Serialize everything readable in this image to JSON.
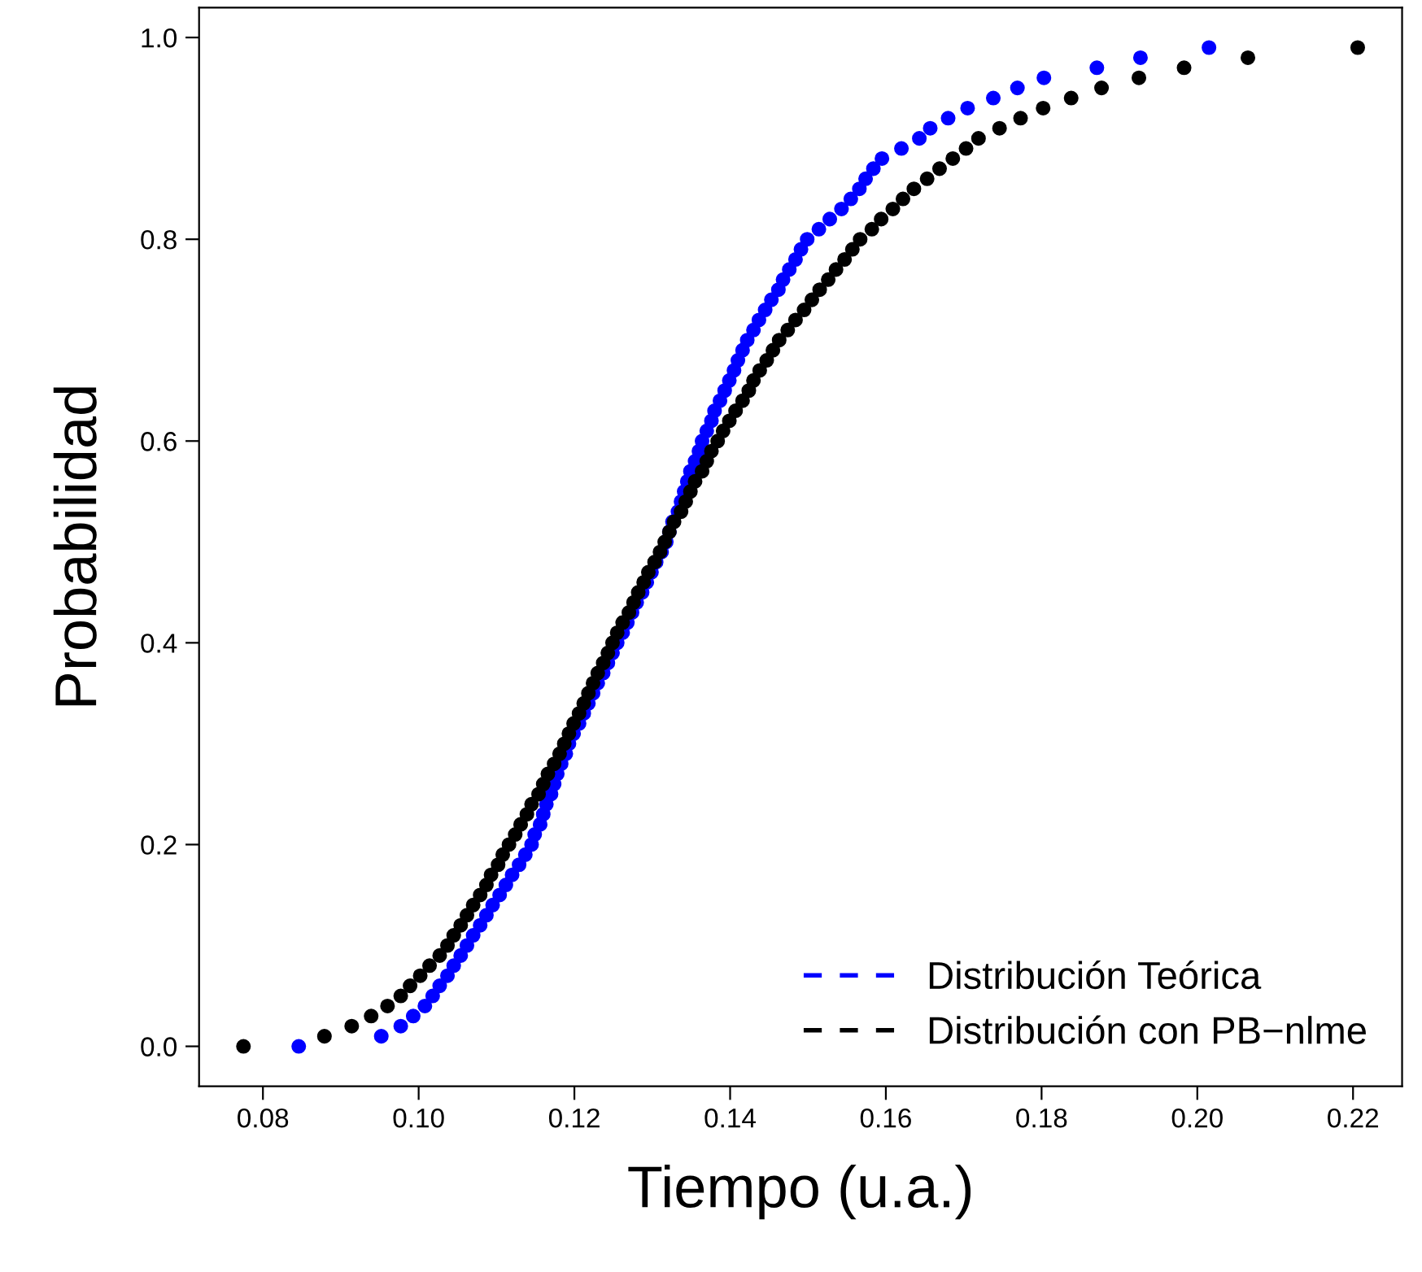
{
  "chart_data": {
    "type": "scatter",
    "xlabel": "Tiempo (u.a.)",
    "ylabel": "Probabilidad",
    "xlim": [
      0.0718,
      0.2263
    ],
    "ylim": [
      -0.0396,
      1.0296
    ],
    "xticks": [
      {
        "value": 0.08,
        "label": "0.08"
      },
      {
        "value": 0.1,
        "label": "0.10"
      },
      {
        "value": 0.12,
        "label": "0.12"
      },
      {
        "value": 0.14,
        "label": "0.14"
      },
      {
        "value": 0.16,
        "label": "0.16"
      },
      {
        "value": 0.18,
        "label": "0.18"
      },
      {
        "value": 0.2,
        "label": "0.20"
      },
      {
        "value": 0.22,
        "label": "0.22"
      }
    ],
    "yticks": [
      {
        "value": 0,
        "label": "0.0"
      },
      {
        "value": 0.2,
        "label": "0.2"
      },
      {
        "value": 0.4,
        "label": "0.4"
      },
      {
        "value": 0.6,
        "label": "0.6"
      },
      {
        "value": 0.8,
        "label": "0.8"
      },
      {
        "value": 1,
        "label": "1.0"
      }
    ],
    "grid": false,
    "legend": "bottom right",
    "marker": "circle",
    "series": [
      {
        "name": "Distribución Teórica",
        "color": "#0000ff",
        "line_style": "dashed",
        "x": [
          0.0846,
          0.0952,
          0.0977,
          0.0993,
          0.1008,
          0.1018,
          0.1027,
          0.1037,
          0.1045,
          0.1054,
          0.1062,
          0.107,
          0.1079,
          0.1087,
          0.1095,
          0.1104,
          0.1112,
          0.112,
          0.1129,
          0.1137,
          0.1145,
          0.1149,
          0.1156,
          0.116,
          0.1164,
          0.117,
          0.1174,
          0.1178,
          0.1183,
          0.1189,
          0.1193,
          0.1199,
          0.1206,
          0.1212,
          0.1218,
          0.1224,
          0.123,
          0.1237,
          0.1243,
          0.1249,
          0.1255,
          0.1262,
          0.1268,
          0.1274,
          0.128,
          0.1287,
          0.1293,
          0.1299,
          0.1305,
          0.1312,
          0.1318,
          0.1322,
          0.1326,
          0.1333,
          0.1337,
          0.1341,
          0.1345,
          0.1349,
          0.1355,
          0.136,
          0.1364,
          0.137,
          0.1376,
          0.138,
          0.1387,
          0.1393,
          0.1399,
          0.1405,
          0.141,
          0.1416,
          0.1422,
          0.143,
          0.1437,
          0.1445,
          0.1453,
          0.1462,
          0.1468,
          0.1476,
          0.1484,
          0.1491,
          0.1499,
          0.1514,
          0.1528,
          0.1543,
          0.1555,
          0.1566,
          0.1574,
          0.1584,
          0.1595,
          0.162,
          0.1643,
          0.1657,
          0.168,
          0.1705,
          0.1738,
          0.1769,
          0.1803,
          0.1871,
          0.1927,
          0.2015
        ],
        "values": [
          0,
          0.01,
          0.02,
          0.03,
          0.04,
          0.05,
          0.06,
          0.07,
          0.08,
          0.09,
          0.1,
          0.11,
          0.12,
          0.13,
          0.14,
          0.15,
          0.16,
          0.17,
          0.18,
          0.19,
          0.2,
          0.21,
          0.22,
          0.23,
          0.24,
          0.25,
          0.26,
          0.27,
          0.28,
          0.29,
          0.3,
          0.31,
          0.32,
          0.33,
          0.34,
          0.35,
          0.36,
          0.37,
          0.38,
          0.39,
          0.4,
          0.41,
          0.42,
          0.43,
          0.44,
          0.45,
          0.46,
          0.47,
          0.48,
          0.49,
          0.5,
          0.51,
          0.52,
          0.53,
          0.54,
          0.55,
          0.56,
          0.57,
          0.58,
          0.59,
          0.6,
          0.61,
          0.62,
          0.63,
          0.64,
          0.65,
          0.66,
          0.67,
          0.68,
          0.69,
          0.7,
          0.71,
          0.72,
          0.73,
          0.74,
          0.75,
          0.76,
          0.77,
          0.78,
          0.79,
          0.8,
          0.81,
          0.82,
          0.83,
          0.84,
          0.85,
          0.86,
          0.87,
          0.88,
          0.89,
          0.9,
          0.91,
          0.92,
          0.93,
          0.94,
          0.95,
          0.96,
          0.97,
          0.98,
          0.99
        ]
      },
      {
        "name": "Distribución con PB−nlme",
        "color": "#000000",
        "line_style": "dashed",
        "x": [
          0.0775,
          0.0879,
          0.0914,
          0.0939,
          0.096,
          0.0977,
          0.0989,
          0.1002,
          0.1014,
          0.1027,
          0.1037,
          0.1045,
          0.1054,
          0.1062,
          0.107,
          0.1079,
          0.1087,
          0.1093,
          0.1102,
          0.1108,
          0.1116,
          0.1124,
          0.1131,
          0.1139,
          0.1145,
          0.1154,
          0.116,
          0.1166,
          0.1174,
          0.1181,
          0.1187,
          0.1193,
          0.1199,
          0.1206,
          0.1212,
          0.1218,
          0.1224,
          0.123,
          0.1237,
          0.1243,
          0.1249,
          0.1255,
          0.1262,
          0.127,
          0.1276,
          0.1282,
          0.1289,
          0.1295,
          0.1303,
          0.131,
          0.1316,
          0.1322,
          0.1328,
          0.1337,
          0.1343,
          0.1349,
          0.1355,
          0.1364,
          0.137,
          0.1376,
          0.1384,
          0.1391,
          0.1399,
          0.1407,
          0.1416,
          0.1424,
          0.143,
          0.1438,
          0.1447,
          0.1455,
          0.1463,
          0.1474,
          0.1484,
          0.1495,
          0.1505,
          0.1515,
          0.1526,
          0.1536,
          0.1547,
          0.1557,
          0.1567,
          0.1582,
          0.1594,
          0.1609,
          0.1622,
          0.1636,
          0.1653,
          0.1669,
          0.1686,
          0.1703,
          0.1719,
          0.1746,
          0.1773,
          0.1802,
          0.1838,
          0.1877,
          0.1925,
          0.1983,
          0.2065,
          0.2206
        ],
        "values": [
          0,
          0.01,
          0.02,
          0.03,
          0.04,
          0.05,
          0.06,
          0.07,
          0.08,
          0.09,
          0.1,
          0.11,
          0.12,
          0.13,
          0.14,
          0.15,
          0.16,
          0.17,
          0.18,
          0.19,
          0.2,
          0.21,
          0.22,
          0.23,
          0.24,
          0.25,
          0.26,
          0.27,
          0.28,
          0.29,
          0.3,
          0.31,
          0.32,
          0.33,
          0.34,
          0.35,
          0.36,
          0.37,
          0.38,
          0.39,
          0.4,
          0.41,
          0.42,
          0.43,
          0.44,
          0.45,
          0.46,
          0.47,
          0.48,
          0.49,
          0.5,
          0.51,
          0.52,
          0.53,
          0.54,
          0.55,
          0.56,
          0.57,
          0.58,
          0.59,
          0.6,
          0.61,
          0.62,
          0.63,
          0.64,
          0.65,
          0.66,
          0.67,
          0.68,
          0.69,
          0.7,
          0.71,
          0.72,
          0.73,
          0.74,
          0.75,
          0.76,
          0.77,
          0.78,
          0.79,
          0.8,
          0.81,
          0.82,
          0.83,
          0.84,
          0.85,
          0.86,
          0.87,
          0.88,
          0.89,
          0.9,
          0.91,
          0.92,
          0.93,
          0.94,
          0.95,
          0.96,
          0.97,
          0.98,
          0.99
        ]
      }
    ]
  }
}
